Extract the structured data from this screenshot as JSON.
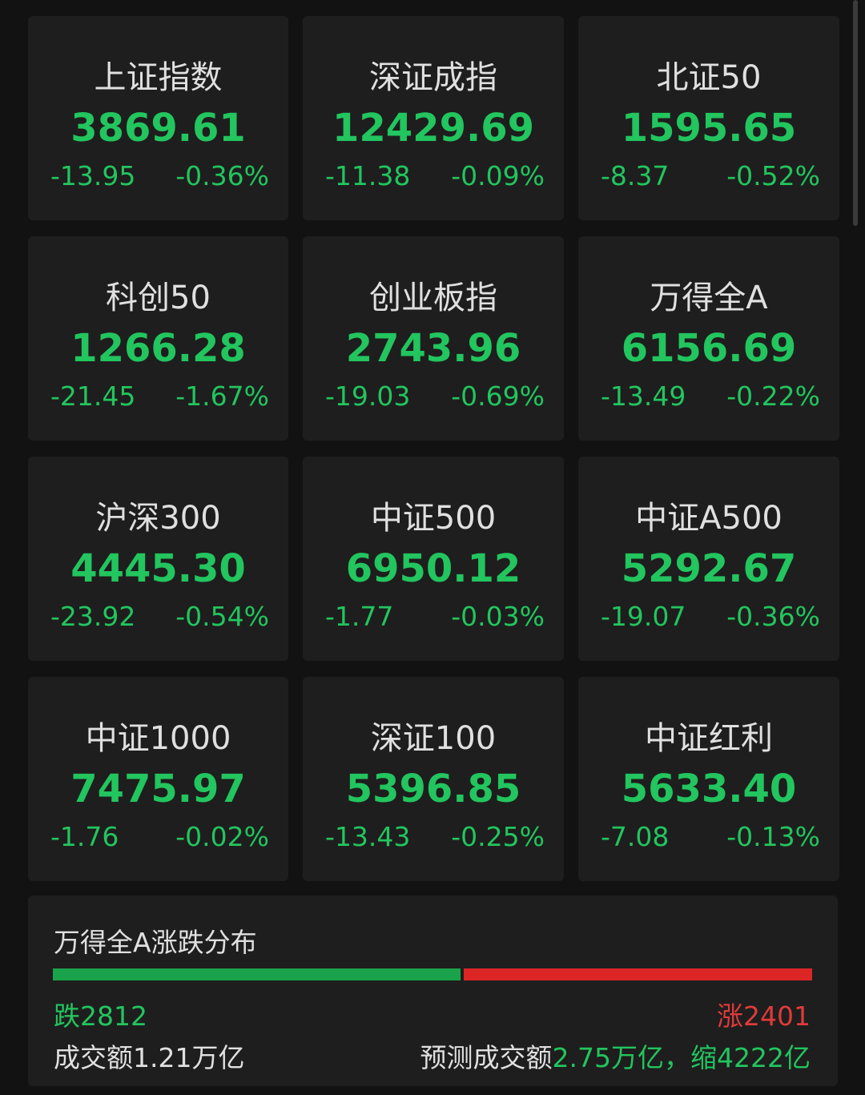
{
  "indices": [
    {
      "name": "上证指数",
      "price": "3869.61",
      "change": "-13.95",
      "pct": "-0.36%"
    },
    {
      "name": "深证成指",
      "price": "12429.69",
      "change": "-11.38",
      "pct": "-0.09%"
    },
    {
      "name": "北证50",
      "price": "1595.65",
      "change": "-8.37",
      "pct": "-0.52%"
    },
    {
      "name": "科创50",
      "price": "1266.28",
      "change": "-21.45",
      "pct": "-1.67%"
    },
    {
      "name": "创业板指",
      "price": "2743.96",
      "change": "-19.03",
      "pct": "-0.69%"
    },
    {
      "name": "万得全A",
      "price": "6156.69",
      "change": "-13.49",
      "pct": "-0.22%"
    },
    {
      "name": "沪深300",
      "price": "4445.30",
      "change": "-23.92",
      "pct": "-0.54%"
    },
    {
      "name": "中证500",
      "price": "6950.12",
      "change": "-1.77",
      "pct": "-0.03%"
    },
    {
      "name": "中证A500",
      "price": "5292.67",
      "change": "-19.07",
      "pct": "-0.36%"
    },
    {
      "name": "中证1000",
      "price": "7475.97",
      "change": "-1.76",
      "pct": "-0.02%"
    },
    {
      "name": "深证100",
      "price": "5396.85",
      "change": "-13.43",
      "pct": "-0.25%"
    },
    {
      "name": "中证红利",
      "price": "5633.40",
      "change": "-7.08",
      "pct": "-0.13%"
    }
  ],
  "distribution": {
    "title": "万得全A涨跌分布",
    "down_label": "跌2812",
    "up_label": "涨2401",
    "down_count": 2812,
    "up_count": 2401,
    "volume": "成交额1.21万亿",
    "forecast_label": "预测成交额",
    "forecast_value": "2.75万亿，缩4222亿"
  },
  "colors": {
    "down": "#22c55e",
    "up": "#dc2626",
    "background": "#121212",
    "card": "#1e1e1e"
  }
}
